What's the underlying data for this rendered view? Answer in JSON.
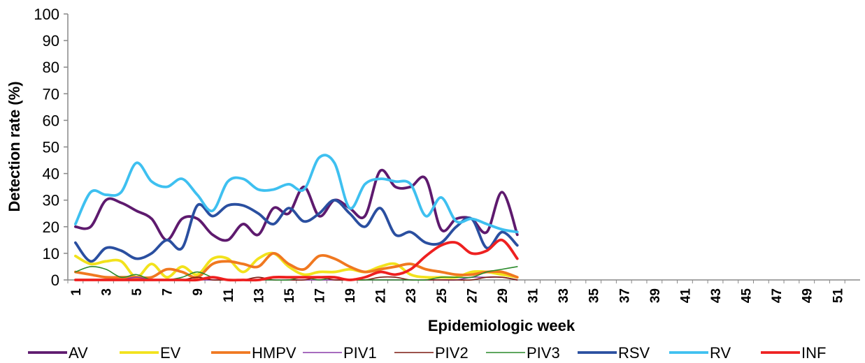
{
  "chart_data": {
    "type": "line",
    "y_label": "Detection rate (%)",
    "x_label": "Epidemiologic week",
    "categories": [
      1,
      null,
      3,
      null,
      5,
      null,
      7,
      null,
      9,
      null,
      11,
      null,
      13,
      null,
      15,
      null,
      17,
      null,
      19,
      null,
      21,
      null,
      23,
      null,
      25,
      null,
      27,
      null,
      29,
      null,
      31,
      null,
      33,
      null,
      35,
      null,
      37,
      null,
      39,
      null,
      41,
      null,
      43,
      null,
      45,
      null,
      47,
      null,
      49,
      null,
      51,
      null
    ],
    "ylim": [
      0,
      100
    ],
    "yticks": [
      0,
      10,
      20,
      30,
      40,
      50,
      60,
      70,
      80,
      90,
      100
    ],
    "series": [
      {
        "name": "AV",
        "color": "#5e1a6e",
        "values": [
          20,
          20,
          30,
          29,
          26,
          23,
          15,
          23,
          23,
          17,
          15,
          21,
          17,
          27,
          25,
          35,
          24,
          30,
          27,
          24,
          41,
          35,
          35,
          38,
          19,
          23,
          23,
          18,
          33,
          17,
          null,
          null,
          null,
          null,
          null,
          null,
          null,
          null,
          null,
          null,
          null,
          null,
          null,
          null,
          null,
          null,
          null,
          null,
          null,
          null,
          null,
          null
        ]
      },
      {
        "name": "EV",
        "color": "#f2e21c",
        "values": [
          9,
          6,
          7,
          7,
          1,
          6,
          1,
          5,
          2,
          8,
          8,
          3,
          8,
          10,
          5,
          2,
          3,
          3,
          4,
          3,
          5,
          6,
          2,
          1,
          1,
          1,
          3,
          3,
          2,
          1,
          null,
          null,
          null,
          null,
          null,
          null,
          null,
          null,
          null,
          null,
          null,
          null,
          null,
          null,
          null,
          null,
          null,
          null,
          null,
          null,
          null,
          null
        ]
      },
      {
        "name": "HMPV",
        "color": "#f07820",
        "values": [
          3,
          2,
          1,
          1,
          1,
          1,
          4,
          3,
          1,
          6,
          7,
          6,
          5,
          10,
          6,
          4,
          9,
          8,
          5,
          3,
          4,
          5,
          6,
          4,
          3,
          2,
          2,
          3,
          3,
          1,
          null,
          null,
          null,
          null,
          null,
          null,
          null,
          null,
          null,
          null,
          null,
          null,
          null,
          null,
          null,
          null,
          null,
          null,
          null,
          null,
          null,
          null
        ]
      },
      {
        "name": "PIV1",
        "color": "#8a3aa8",
        "values": [
          0,
          0,
          0,
          0,
          1,
          0,
          0,
          0,
          0,
          0,
          0,
          0,
          0,
          0,
          0,
          0,
          0,
          0,
          0,
          0,
          0,
          0,
          0,
          0,
          0,
          0,
          1,
          1,
          1,
          0,
          null,
          null,
          null,
          null,
          null,
          null,
          null,
          null,
          null,
          null,
          null,
          null,
          null,
          null,
          null,
          null,
          null,
          null,
          null,
          null,
          null,
          null
        ]
      },
      {
        "name": "PIV2",
        "color": "#7b1a10",
        "values": [
          0,
          0,
          0,
          0,
          0,
          0,
          0,
          0,
          1,
          0,
          0,
          0,
          1,
          0,
          0,
          0,
          1,
          0,
          0,
          0,
          1,
          1,
          0,
          0,
          0,
          0,
          0,
          1,
          1,
          0,
          null,
          null,
          null,
          null,
          null,
          null,
          null,
          null,
          null,
          null,
          null,
          null,
          null,
          null,
          null,
          null,
          null,
          null,
          null,
          null,
          null,
          null
        ]
      },
      {
        "name": "PIV3",
        "color": "#2a8a2a",
        "values": [
          3,
          5,
          4,
          1,
          2,
          0,
          0,
          1,
          3,
          1,
          0,
          0,
          0,
          0,
          0,
          1,
          0,
          1,
          0,
          0,
          0,
          0,
          0,
          0,
          1,
          1,
          1,
          3,
          4,
          5,
          null,
          null,
          null,
          null,
          null,
          null,
          null,
          null,
          null,
          null,
          null,
          null,
          null,
          null,
          null,
          null,
          null,
          null,
          null,
          null,
          null,
          null
        ]
      },
      {
        "name": "RSV",
        "color": "#2a4fa0",
        "values": [
          14,
          7,
          12,
          11,
          8,
          10,
          15,
          12,
          28,
          24,
          28,
          28,
          25,
          21,
          27,
          22,
          25,
          30,
          25,
          20,
          27,
          17,
          18,
          14,
          14,
          20,
          23,
          12,
          18,
          13,
          null,
          null,
          null,
          null,
          null,
          null,
          null,
          null,
          null,
          null,
          null,
          null,
          null,
          null,
          null,
          null,
          null,
          null,
          null,
          null,
          null,
          null
        ]
      },
      {
        "name": "RV",
        "color": "#3ec0f0",
        "values": [
          21,
          33,
          32,
          33,
          44,
          37,
          35,
          38,
          32,
          26,
          37,
          38,
          34,
          34,
          36,
          34,
          46,
          44,
          27,
          36,
          38,
          37,
          36,
          24,
          31,
          22,
          23,
          21,
          19,
          18,
          null,
          null,
          null,
          null,
          null,
          null,
          null,
          null,
          null,
          null,
          null,
          null,
          null,
          null,
          null,
          null,
          null,
          null,
          null,
          null,
          null,
          null
        ]
      },
      {
        "name": "INF",
        "color": "#ee2020",
        "values": [
          0,
          0,
          0,
          0,
          0,
          0,
          0,
          0,
          0,
          1,
          0,
          0,
          0,
          1,
          1,
          1,
          1,
          1,
          0,
          1,
          3,
          2,
          4,
          9,
          13,
          14,
          10,
          11,
          15,
          8,
          null,
          null,
          null,
          null,
          null,
          null,
          null,
          null,
          null,
          null,
          null,
          null,
          null,
          null,
          null,
          null,
          null,
          null,
          null,
          null,
          null,
          null
        ]
      }
    ]
  }
}
